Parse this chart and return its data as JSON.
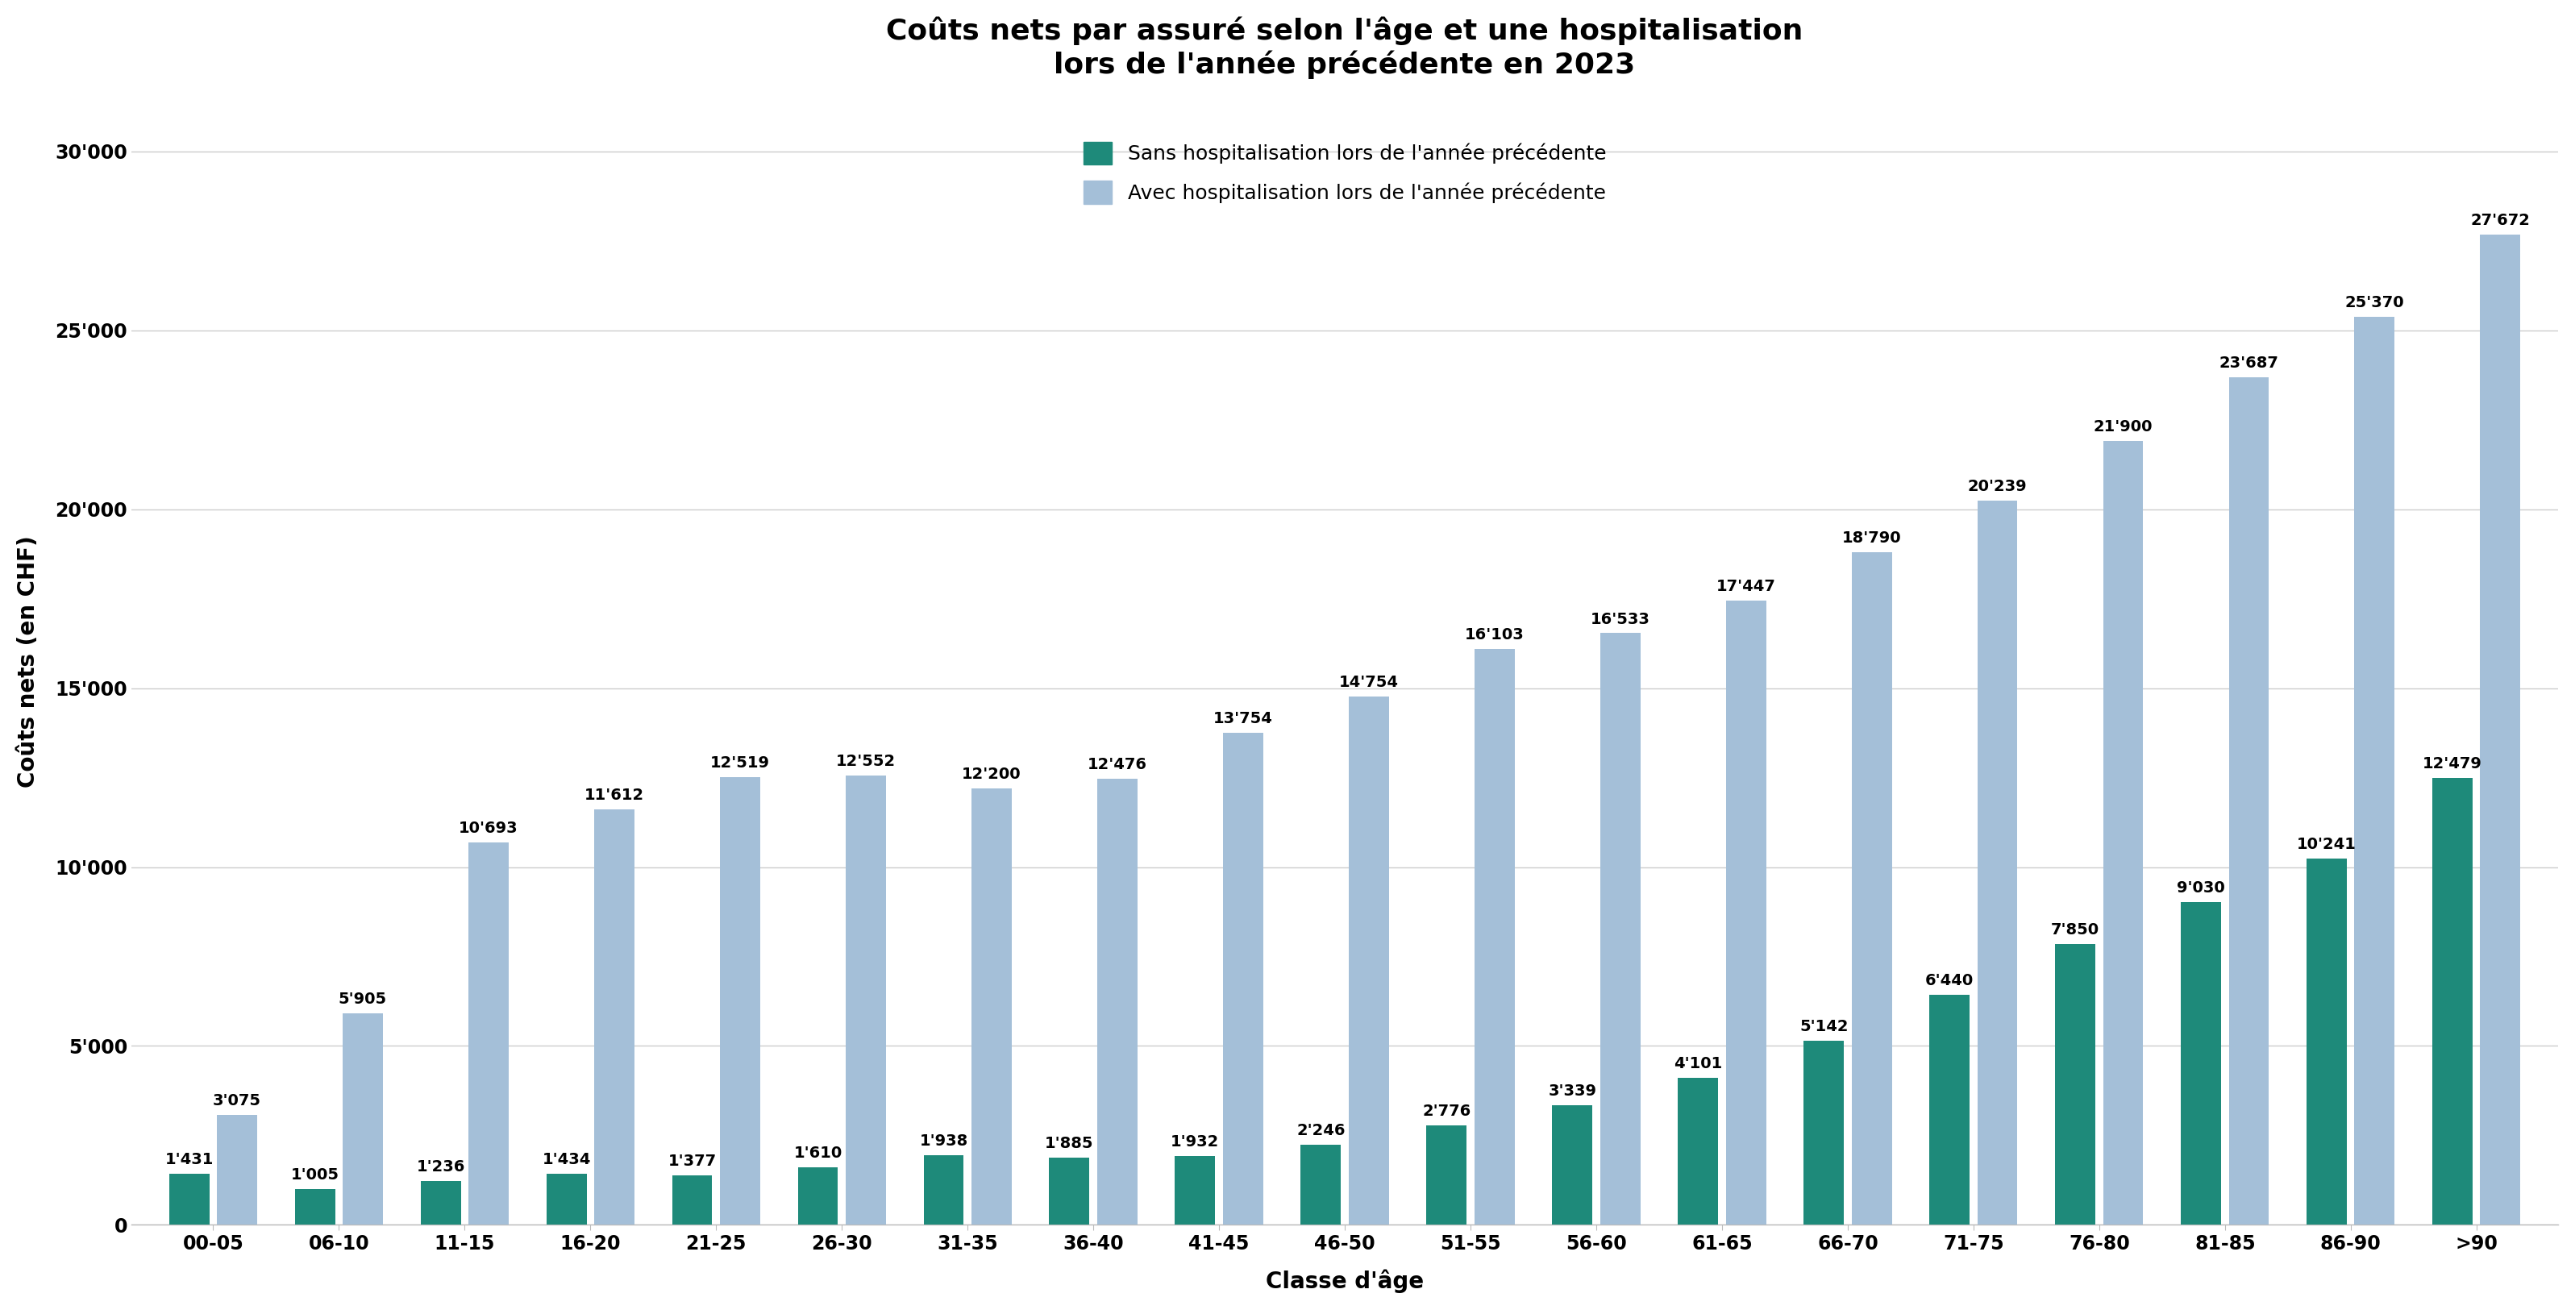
{
  "title": "Coûts nets par assuré selon l'âge et une hospitalisation\nlors de l'année précédente en 2023",
  "xlabel": "Classe d'âge",
  "ylabel": "Coûts nets (en CHF)",
  "categories": [
    "00-05",
    "06-10",
    "11-15",
    "16-20",
    "21-25",
    "26-30",
    "31-35",
    "36-40",
    "41-45",
    "46-50",
    "51-55",
    "56-60",
    "61-65",
    "66-70",
    "71-75",
    "76-80",
    "81-85",
    "86-90",
    ">90"
  ],
  "values_sans": [
    1431,
    1005,
    1236,
    1434,
    1377,
    1610,
    1938,
    1885,
    1932,
    2246,
    2776,
    3339,
    4101,
    5142,
    6440,
    7850,
    9030,
    10241,
    12479
  ],
  "values_avec": [
    3075,
    5905,
    10693,
    11612,
    12519,
    12552,
    12200,
    12476,
    13754,
    14754,
    16103,
    16533,
    17447,
    18790,
    20239,
    21900,
    23687,
    25370,
    27672
  ],
  "color_sans": "#1e8a7a",
  "color_avec": "#a4bfd8",
  "ylim": [
    0,
    31500
  ],
  "yticks": [
    0,
    5000,
    10000,
    15000,
    20000,
    25000,
    30000
  ],
  "ytick_labels": [
    "0",
    "5'000",
    "10'000",
    "15'000",
    "20'000",
    "25'000",
    "30'000"
  ],
  "legend_sans": "Sans hospitalisation lors de l'année précédente",
  "legend_avec": "Avec hospitalisation lors de l'année précédente",
  "background_color": "#ffffff",
  "grid_color": "#cccccc",
  "title_fontsize": 26,
  "label_fontsize": 20,
  "tick_fontsize": 17,
  "annotation_fontsize": 14,
  "legend_fontsize": 18
}
